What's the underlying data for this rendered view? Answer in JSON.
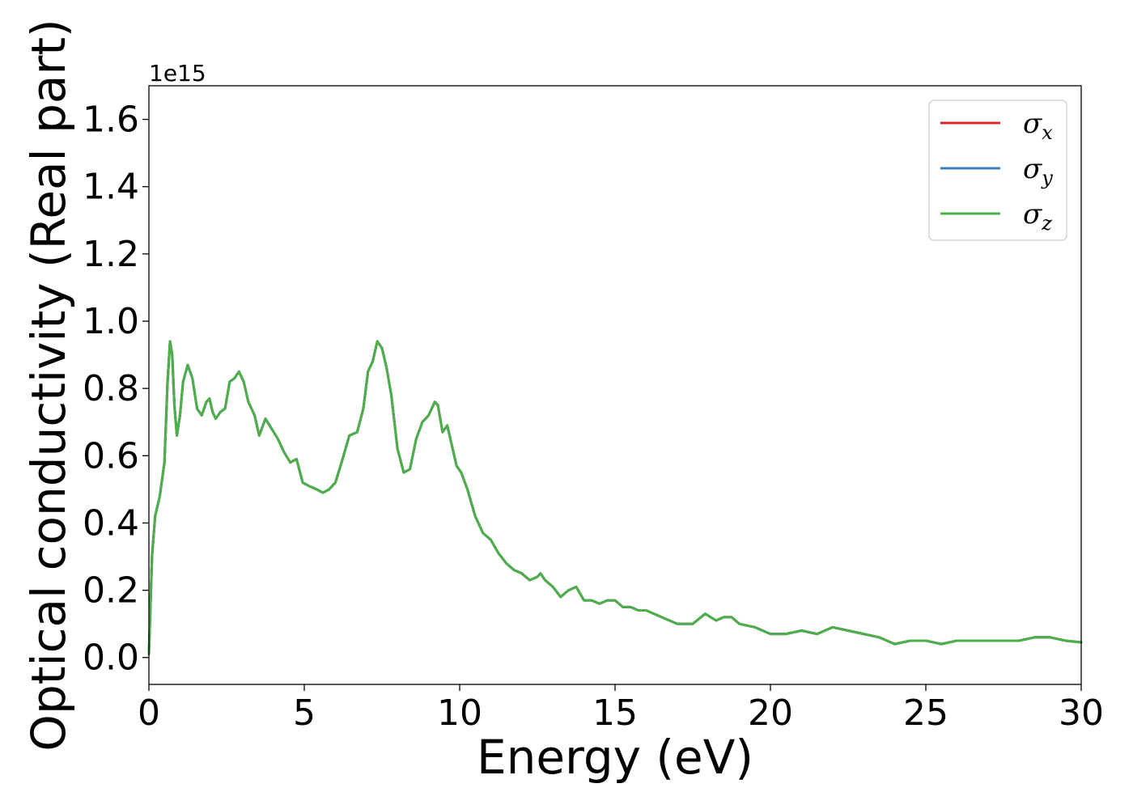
{
  "chart_data": {
    "type": "line",
    "title": "",
    "xlabel": "Energy (eV)",
    "ylabel": "Optical conductivity (Real part)",
    "y_offset_label": "1e15",
    "xlim": [
      0,
      30
    ],
    "ylim": [
      -0.08,
      1.7
    ],
    "xticks": [
      0,
      5,
      10,
      15,
      20,
      25,
      30
    ],
    "xtick_labels": [
      "0",
      "5",
      "10",
      "15",
      "20",
      "25",
      "30"
    ],
    "yticks": [
      0.0,
      0.2,
      0.4,
      0.6,
      0.8,
      1.0,
      1.2,
      1.4,
      1.6
    ],
    "ytick_labels": [
      "0.0",
      "0.2",
      "0.4",
      "0.6",
      "0.8",
      "1.0",
      "1.2",
      "1.4",
      "1.6"
    ],
    "grid": false,
    "legend_position": "top-right",
    "x": [
      0,
      0.1,
      0.2,
      0.35,
      0.5,
      0.6,
      0.68,
      0.75,
      0.82,
      0.9,
      1.0,
      1.1,
      1.25,
      1.4,
      1.55,
      1.7,
      1.85,
      1.95,
      2.05,
      2.15,
      2.3,
      2.45,
      2.6,
      2.75,
      2.9,
      3.05,
      3.2,
      3.4,
      3.55,
      3.75,
      3.95,
      4.15,
      4.35,
      4.55,
      4.75,
      4.95,
      5.15,
      5.4,
      5.6,
      5.8,
      6.0,
      6.2,
      6.45,
      6.7,
      6.9,
      7.05,
      7.2,
      7.35,
      7.5,
      7.65,
      7.8,
      8.0,
      8.2,
      8.4,
      8.6,
      8.8,
      9.0,
      9.2,
      9.3,
      9.45,
      9.6,
      9.75,
      9.9,
      10.05,
      10.25,
      10.5,
      10.75,
      11.0,
      11.25,
      11.5,
      11.75,
      12.0,
      12.25,
      12.5,
      12.6,
      12.75,
      13.0,
      13.25,
      13.5,
      13.75,
      14.0,
      14.25,
      14.5,
      14.75,
      15.0,
      15.25,
      15.5,
      15.75,
      16.0,
      16.5,
      17.0,
      17.5,
      17.9,
      18.25,
      18.5,
      18.75,
      19.0,
      19.5,
      20.0,
      20.5,
      21.0,
      21.5,
      22.0,
      22.5,
      23.0,
      23.5,
      24.0,
      24.5,
      25.0,
      25.5,
      26.0,
      26.5,
      27.0,
      27.5,
      28.0,
      28.5,
      29.0,
      29.5,
      30.0
    ],
    "series": [
      {
        "name": "σx",
        "color": "#d62728",
        "values": [
          0.01,
          0.3,
          0.42,
          0.48,
          0.58,
          0.82,
          0.94,
          0.9,
          0.75,
          0.66,
          0.72,
          0.82,
          0.87,
          0.83,
          0.74,
          0.72,
          0.76,
          0.77,
          0.73,
          0.71,
          0.73,
          0.74,
          0.82,
          0.83,
          0.85,
          0.82,
          0.76,
          0.72,
          0.66,
          0.71,
          0.68,
          0.65,
          0.61,
          0.58,
          0.59,
          0.52,
          0.51,
          0.5,
          0.49,
          0.5,
          0.52,
          0.58,
          0.66,
          0.67,
          0.74,
          0.85,
          0.88,
          0.94,
          0.92,
          0.86,
          0.78,
          0.62,
          0.55,
          0.56,
          0.65,
          0.7,
          0.72,
          0.76,
          0.75,
          0.67,
          0.69,
          0.63,
          0.57,
          0.55,
          0.5,
          0.42,
          0.37,
          0.35,
          0.31,
          0.28,
          0.26,
          0.25,
          0.23,
          0.24,
          0.25,
          0.23,
          0.21,
          0.18,
          0.2,
          0.21,
          0.17,
          0.17,
          0.16,
          0.17,
          0.17,
          0.15,
          0.15,
          0.14,
          0.14,
          0.12,
          0.1,
          0.1,
          0.13,
          0.11,
          0.12,
          0.12,
          0.1,
          0.09,
          0.07,
          0.07,
          0.08,
          0.07,
          0.09,
          0.08,
          0.07,
          0.06,
          0.04,
          0.05,
          0.05,
          0.04,
          0.05,
          0.05,
          0.05,
          0.05,
          0.05,
          0.06,
          0.06,
          0.05,
          0.045
        ]
      },
      {
        "name": "σy",
        "color": "#377eb8",
        "values": [
          0.01,
          0.3,
          0.42,
          0.48,
          0.58,
          0.82,
          0.94,
          0.9,
          0.75,
          0.66,
          0.72,
          0.82,
          0.87,
          0.83,
          0.74,
          0.72,
          0.76,
          0.77,
          0.73,
          0.71,
          0.73,
          0.74,
          0.82,
          0.83,
          0.85,
          0.82,
          0.76,
          0.72,
          0.66,
          0.71,
          0.68,
          0.65,
          0.61,
          0.58,
          0.59,
          0.52,
          0.51,
          0.5,
          0.49,
          0.5,
          0.52,
          0.58,
          0.66,
          0.67,
          0.74,
          0.85,
          0.88,
          0.94,
          0.92,
          0.86,
          0.78,
          0.62,
          0.55,
          0.56,
          0.65,
          0.7,
          0.72,
          0.76,
          0.75,
          0.67,
          0.69,
          0.63,
          0.57,
          0.55,
          0.5,
          0.42,
          0.37,
          0.35,
          0.31,
          0.28,
          0.26,
          0.25,
          0.23,
          0.24,
          0.25,
          0.23,
          0.21,
          0.18,
          0.2,
          0.21,
          0.17,
          0.17,
          0.16,
          0.17,
          0.17,
          0.15,
          0.15,
          0.14,
          0.14,
          0.12,
          0.1,
          0.1,
          0.13,
          0.11,
          0.12,
          0.12,
          0.1,
          0.09,
          0.07,
          0.07,
          0.08,
          0.07,
          0.09,
          0.08,
          0.07,
          0.06,
          0.04,
          0.05,
          0.05,
          0.04,
          0.05,
          0.05,
          0.05,
          0.05,
          0.05,
          0.06,
          0.06,
          0.05,
          0.045
        ]
      },
      {
        "name": "σz",
        "color": "#4daf4a",
        "values": [
          0.01,
          0.3,
          0.42,
          0.48,
          0.58,
          0.82,
          0.94,
          0.9,
          0.75,
          0.66,
          0.72,
          0.82,
          0.87,
          0.83,
          0.74,
          0.72,
          0.76,
          0.77,
          0.73,
          0.71,
          0.73,
          0.74,
          0.82,
          0.83,
          0.85,
          0.82,
          0.76,
          0.72,
          0.66,
          0.71,
          0.68,
          0.65,
          0.61,
          0.58,
          0.59,
          0.52,
          0.51,
          0.5,
          0.49,
          0.5,
          0.52,
          0.58,
          0.66,
          0.67,
          0.74,
          0.85,
          0.88,
          0.94,
          0.92,
          0.86,
          0.78,
          0.62,
          0.55,
          0.56,
          0.65,
          0.7,
          0.72,
          0.76,
          0.75,
          0.67,
          0.69,
          0.63,
          0.57,
          0.55,
          0.5,
          0.42,
          0.37,
          0.35,
          0.31,
          0.28,
          0.26,
          0.25,
          0.23,
          0.24,
          0.25,
          0.23,
          0.21,
          0.18,
          0.2,
          0.21,
          0.17,
          0.17,
          0.16,
          0.17,
          0.17,
          0.15,
          0.15,
          0.14,
          0.14,
          0.12,
          0.1,
          0.1,
          0.13,
          0.11,
          0.12,
          0.12,
          0.1,
          0.09,
          0.07,
          0.07,
          0.08,
          0.07,
          0.09,
          0.08,
          0.07,
          0.06,
          0.04,
          0.05,
          0.05,
          0.04,
          0.05,
          0.05,
          0.05,
          0.05,
          0.05,
          0.06,
          0.06,
          0.05,
          0.045
        ]
      }
    ],
    "legend": [
      {
        "symbol": "σ",
        "sub": "x",
        "color": "#d62728"
      },
      {
        "symbol": "σ",
        "sub": "y",
        "color": "#377eb8"
      },
      {
        "symbol": "σ",
        "sub": "z",
        "color": "#4daf4a"
      }
    ]
  }
}
